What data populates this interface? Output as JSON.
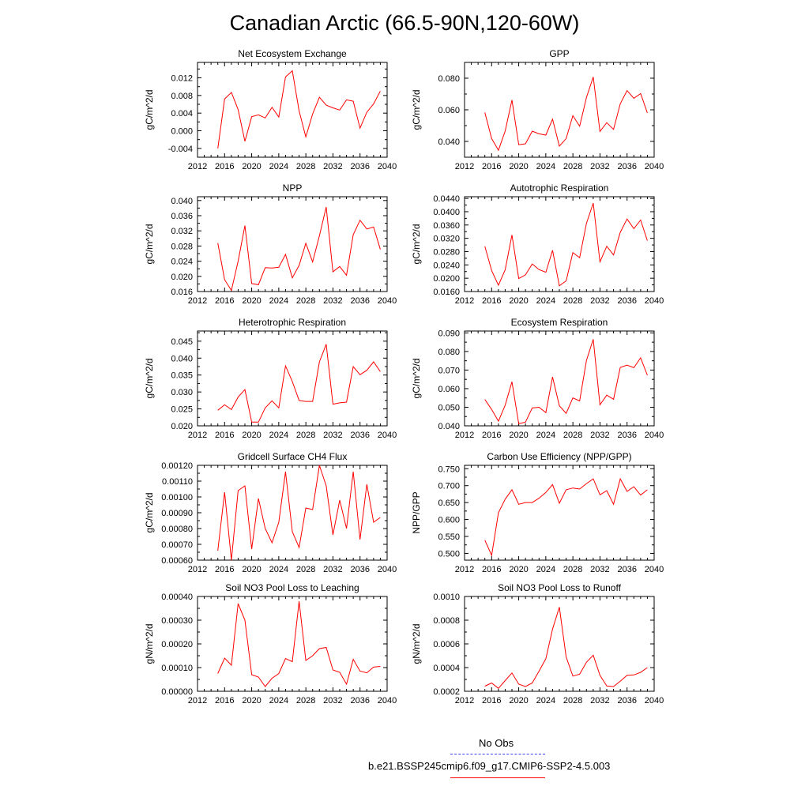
{
  "title": "Canadian Arctic (66.5-90N,120-60W)",
  "legend": {
    "obs_label": "No Obs",
    "model_label": "b.e21.BSSP245cmip6.f09_g17.CMIP6-SSP2-4.5.003",
    "obs_color": "#4040ff",
    "model_color": "#ff0000"
  },
  "chart_data": [
    {
      "type": "line",
      "title": "Net Ecosystem Exchange",
      "ylabel": "gC/m^2/d",
      "xlim": [
        2012,
        2040
      ],
      "ylim": [
        -0.006,
        0.0155
      ],
      "xticks": [
        2012,
        2016,
        2020,
        2024,
        2028,
        2032,
        2036,
        2040
      ],
      "xtick_labels": [
        "2012",
        "2016",
        "2020",
        "2024",
        "2028",
        "2032",
        "2036",
        "2040"
      ],
      "yticks": [
        -0.004,
        0.0,
        0.004,
        0.008,
        0.012
      ],
      "ytick_labels": [
        "-0.004",
        "0.000",
        "0.004",
        "0.008",
        "0.012"
      ],
      "x": [
        2015,
        2016,
        2017,
        2018,
        2019,
        2020,
        2021,
        2022,
        2023,
        2024,
        2025,
        2026,
        2027,
        2028,
        2029,
        2030,
        2031,
        2032,
        2033,
        2034,
        2035,
        2036,
        2037,
        2038,
        2039
      ],
      "y": [
        -0.004,
        0.0072,
        0.0087,
        0.0048,
        -0.0024,
        0.0032,
        0.0036,
        0.0029,
        0.0053,
        0.0031,
        0.0122,
        0.0136,
        0.0045,
        -0.0014,
        0.0038,
        0.0076,
        0.0058,
        0.0052,
        0.0047,
        0.007,
        0.0067,
        0.0006,
        0.0042,
        0.0061,
        0.009
      ]
    },
    {
      "type": "line",
      "title": "GPP",
      "ylabel": "gC/m^2/d",
      "xlim": [
        2012,
        2040
      ],
      "ylim": [
        0.03,
        0.09
      ],
      "xticks": [
        2012,
        2016,
        2020,
        2024,
        2028,
        2032,
        2036,
        2040
      ],
      "xtick_labels": [
        "2012",
        "2016",
        "2020",
        "2024",
        "2028",
        "2032",
        "2036",
        "2040"
      ],
      "yticks": [
        0.04,
        0.06,
        0.08
      ],
      "ytick_labels": [
        "0.040",
        "0.060",
        "0.080"
      ],
      "x": [
        2015,
        2016,
        2017,
        2018,
        2019,
        2020,
        2021,
        2022,
        2023,
        2024,
        2025,
        2026,
        2027,
        2028,
        2029,
        2030,
        2031,
        2032,
        2033,
        2034,
        2035,
        2036,
        2037,
        2038,
        2039
      ],
      "y": [
        0.0583,
        0.0418,
        0.0344,
        0.0465,
        0.0662,
        0.0379,
        0.0385,
        0.0465,
        0.0448,
        0.044,
        0.0541,
        0.037,
        0.0418,
        0.0563,
        0.0496,
        0.0678,
        0.0808,
        0.0463,
        0.0519,
        0.0476,
        0.0638,
        0.0722,
        0.0673,
        0.0703,
        0.058
      ]
    },
    {
      "type": "line",
      "title": "NPP",
      "ylabel": "gC/m^2/d",
      "xlim": [
        2012,
        2040
      ],
      "ylim": [
        0.016,
        0.041
      ],
      "xticks": [
        2012,
        2016,
        2020,
        2024,
        2028,
        2032,
        2036,
        2040
      ],
      "xtick_labels": [
        "2012",
        "2016",
        "2020",
        "2024",
        "2028",
        "2032",
        "2036",
        "2040"
      ],
      "yticks": [
        0.016,
        0.02,
        0.024,
        0.028,
        0.032,
        0.036,
        0.04
      ],
      "ytick_labels": [
        "0.016",
        "0.020",
        "0.024",
        "0.028",
        "0.032",
        "0.036",
        "0.040"
      ],
      "x": [
        2015,
        2016,
        2017,
        2018,
        2019,
        2020,
        2021,
        2022,
        2023,
        2024,
        2025,
        2026,
        2027,
        2028,
        2029,
        2030,
        2031,
        2032,
        2033,
        2034,
        2035,
        2036,
        2037,
        2038,
        2039
      ],
      "y": [
        0.0288,
        0.0191,
        0.0163,
        0.024,
        0.0334,
        0.0181,
        0.0178,
        0.0223,
        0.0222,
        0.0224,
        0.0258,
        0.0196,
        0.0229,
        0.0287,
        0.0238,
        0.0307,
        0.0383,
        0.0212,
        0.0226,
        0.0203,
        0.031,
        0.0348,
        0.0325,
        0.033,
        0.0271
      ]
    },
    {
      "type": "line",
      "title": "Autotrophic Respiration",
      "ylabel": "gC/m^2/d",
      "xlim": [
        2012,
        2040
      ],
      "ylim": [
        0.016,
        0.0445
      ],
      "xticks": [
        2012,
        2016,
        2020,
        2024,
        2028,
        2032,
        2036,
        2040
      ],
      "xtick_labels": [
        "2012",
        "2016",
        "2020",
        "2024",
        "2028",
        "2032",
        "2036",
        "2040"
      ],
      "yticks": [
        0.016,
        0.02,
        0.024,
        0.028,
        0.032,
        0.036,
        0.04,
        0.044
      ],
      "ytick_labels": [
        "0.0160",
        "0.0200",
        "0.0240",
        "0.0280",
        "0.0320",
        "0.0360",
        "0.0400",
        "0.0440"
      ],
      "x": [
        2015,
        2016,
        2017,
        2018,
        2019,
        2020,
        2021,
        2022,
        2023,
        2024,
        2025,
        2026,
        2027,
        2028,
        2029,
        2030,
        2031,
        2032,
        2033,
        2034,
        2035,
        2036,
        2037,
        2038,
        2039
      ],
      "y": [
        0.0296,
        0.0223,
        0.0179,
        0.0225,
        0.033,
        0.0199,
        0.021,
        0.0243,
        0.0226,
        0.0218,
        0.0284,
        0.0177,
        0.0192,
        0.0277,
        0.0262,
        0.0365,
        0.0426,
        0.0249,
        0.0296,
        0.027,
        0.0338,
        0.0378,
        0.0349,
        0.0375,
        0.0313
      ]
    },
    {
      "type": "line",
      "title": "Heterotrophic Respiration",
      "ylabel": "gC/m^2/d",
      "xlim": [
        2012,
        2040
      ],
      "ylim": [
        0.02,
        0.048
      ],
      "xticks": [
        2012,
        2016,
        2020,
        2024,
        2028,
        2032,
        2036,
        2040
      ],
      "xtick_labels": [
        "2012",
        "2016",
        "2020",
        "2024",
        "2028",
        "2032",
        "2036",
        "2040"
      ],
      "yticks": [
        0.02,
        0.025,
        0.03,
        0.035,
        0.04,
        0.045
      ],
      "ytick_labels": [
        "0.020",
        "0.025",
        "0.030",
        "0.035",
        "0.040",
        "0.045"
      ],
      "x": [
        2015,
        2016,
        2017,
        2018,
        2019,
        2020,
        2021,
        2022,
        2023,
        2024,
        2025,
        2026,
        2027,
        2028,
        2029,
        2030,
        2031,
        2032,
        2033,
        2034,
        2035,
        2036,
        2037,
        2038,
        2039
      ],
      "y": [
        0.0246,
        0.0262,
        0.0248,
        0.0285,
        0.0307,
        0.0211,
        0.0211,
        0.0253,
        0.0274,
        0.0253,
        0.0377,
        0.0331,
        0.0275,
        0.0272,
        0.0272,
        0.0389,
        0.0441,
        0.0264,
        0.0268,
        0.027,
        0.0375,
        0.0351,
        0.0364,
        0.0389,
        0.036
      ]
    },
    {
      "type": "line",
      "title": "Ecosystem Respiration",
      "ylabel": "gC/m^2/d",
      "xlim": [
        2012,
        2040
      ],
      "ylim": [
        0.04,
        0.091
      ],
      "xticks": [
        2012,
        2016,
        2020,
        2024,
        2028,
        2032,
        2036,
        2040
      ],
      "xtick_labels": [
        "2012",
        "2016",
        "2020",
        "2024",
        "2028",
        "2032",
        "2036",
        "2040"
      ],
      "yticks": [
        0.04,
        0.05,
        0.06,
        0.07,
        0.08,
        0.09
      ],
      "ytick_labels": [
        "0.040",
        "0.050",
        "0.060",
        "0.070",
        "0.080",
        "0.090"
      ],
      "x": [
        2015,
        2016,
        2017,
        2018,
        2019,
        2020,
        2021,
        2022,
        2023,
        2024,
        2025,
        2026,
        2027,
        2028,
        2029,
        2030,
        2031,
        2032,
        2033,
        2034,
        2035,
        2036,
        2037,
        2038,
        2039
      ],
      "y": [
        0.0542,
        0.0488,
        0.0425,
        0.0511,
        0.0637,
        0.0411,
        0.042,
        0.0496,
        0.05,
        0.0471,
        0.0663,
        0.0508,
        0.0467,
        0.055,
        0.0534,
        0.0752,
        0.0866,
        0.0513,
        0.0565,
        0.0543,
        0.0714,
        0.0727,
        0.0713,
        0.0766,
        0.0672
      ]
    },
    {
      "type": "line",
      "title": "Gridcell Surface CH4 Flux",
      "ylabel": "gC/m^2/d",
      "xlim": [
        2012,
        2040
      ],
      "ylim": [
        0.0006,
        0.0012
      ],
      "xticks": [
        2012,
        2016,
        2020,
        2024,
        2028,
        2032,
        2036,
        2040
      ],
      "xtick_labels": [
        "2012",
        "2016",
        "2020",
        "2024",
        "2028",
        "2032",
        "2036",
        "2040"
      ],
      "yticks": [
        0.0006,
        0.0007,
        0.0008,
        0.0009,
        0.001,
        0.0011,
        0.0012
      ],
      "ytick_labels": [
        "0.00060",
        "0.00070",
        "0.00080",
        "0.00090",
        "0.00100",
        "0.00110",
        "0.00120"
      ],
      "x": [
        2015,
        2016,
        2017,
        2018,
        2019,
        2020,
        2021,
        2022,
        2023,
        2024,
        2025,
        2026,
        2027,
        2028,
        2029,
        2030,
        2031,
        2032,
        2033,
        2034,
        2035,
        2036,
        2037,
        2038,
        2039
      ],
      "y": [
        0.00066,
        0.00103,
        0.0006,
        0.00104,
        0.00107,
        0.00067,
        0.00099,
        0.0008,
        0.00071,
        0.00084,
        0.00116,
        0.00078,
        0.00068,
        0.00093,
        0.00092,
        0.0012,
        0.00107,
        0.00076,
        0.00098,
        0.0008,
        0.00116,
        0.00073,
        0.00108,
        0.00084,
        0.00087
      ]
    },
    {
      "type": "line",
      "title": "Carbon Use Efficiency (NPP/GPP)",
      "ylabel": "NPP/GPP",
      "xlim": [
        2012,
        2040
      ],
      "ylim": [
        0.48,
        0.76
      ],
      "xticks": [
        2012,
        2016,
        2020,
        2024,
        2028,
        2032,
        2036,
        2040
      ],
      "xtick_labels": [
        "2012",
        "2016",
        "2020",
        "2024",
        "2028",
        "2032",
        "2036",
        "2040"
      ],
      "yticks": [
        0.5,
        0.55,
        0.6,
        0.65,
        0.7,
        0.75
      ],
      "ytick_labels": [
        "0.500",
        "0.550",
        "0.600",
        "0.650",
        "0.700",
        "0.750"
      ],
      "x": [
        2015,
        2016,
        2017,
        2018,
        2019,
        2020,
        2021,
        2022,
        2023,
        2024,
        2025,
        2026,
        2027,
        2028,
        2029,
        2030,
        2031,
        2032,
        2033,
        2034,
        2035,
        2036,
        2037,
        2038,
        2039
      ],
      "y": [
        0.539,
        0.494,
        0.62,
        0.66,
        0.688,
        0.645,
        0.65,
        0.65,
        0.663,
        0.68,
        0.703,
        0.648,
        0.688,
        0.693,
        0.69,
        0.706,
        0.72,
        0.673,
        0.685,
        0.645,
        0.72,
        0.683,
        0.697,
        0.672,
        0.688
      ]
    },
    {
      "type": "line",
      "title": "Soil NO3 Pool Loss to Leaching",
      "ylabel": "gN/m^2/d",
      "xlim": [
        2012,
        2040
      ],
      "ylim": [
        0.0,
        0.0004
      ],
      "xticks": [
        2012,
        2016,
        2020,
        2024,
        2028,
        2032,
        2036,
        2040
      ],
      "xtick_labels": [
        "2012",
        "2016",
        "2020",
        "2024",
        "2028",
        "2032",
        "2036",
        "2040"
      ],
      "yticks": [
        0.0,
        0.0001,
        0.0002,
        0.0003,
        0.0004
      ],
      "ytick_labels": [
        "0.00000",
        "0.00010",
        "0.00020",
        "0.00030",
        "0.00040"
      ],
      "x": [
        2015,
        2016,
        2017,
        2018,
        2019,
        2020,
        2021,
        2022,
        2023,
        2024,
        2025,
        2026,
        2027,
        2028,
        2029,
        2030,
        2031,
        2032,
        2033,
        2034,
        2035,
        2036,
        2037,
        2038,
        2039
      ],
      "y": [
        7.5e-05,
        0.00014,
        0.00011,
        0.00037,
        0.0003,
        7e-05,
        6e-05,
        2e-05,
        5.5e-05,
        7.5e-05,
        0.000138,
        0.000125,
        0.00038,
        0.00013,
        0.00015,
        0.00018,
        0.000185,
        9e-05,
        8e-05,
        3e-05,
        0.000135,
        8.5e-05,
        7.8e-05,
        0.000102,
        0.000105
      ]
    },
    {
      "type": "line",
      "title": "Soil NO3 Pool Loss to Runoff",
      "ylabel": "gN/m^2/d",
      "xlim": [
        2012,
        2040
      ],
      "ylim": [
        0.0002,
        0.001
      ],
      "xticks": [
        2012,
        2016,
        2020,
        2024,
        2028,
        2032,
        2036,
        2040
      ],
      "xtick_labels": [
        "2012",
        "2016",
        "2020",
        "2024",
        "2028",
        "2032",
        "2036",
        "2040"
      ],
      "yticks": [
        0.0002,
        0.0004,
        0.0006,
        0.0008,
        0.001
      ],
      "ytick_labels": [
        "0.0002",
        "0.0004",
        "0.0006",
        "0.0008",
        "0.0010"
      ],
      "x": [
        2015,
        2016,
        2017,
        2018,
        2019,
        2020,
        2021,
        2022,
        2023,
        2024,
        2025,
        2026,
        2027,
        2028,
        2029,
        2030,
        2031,
        2032,
        2033,
        2034,
        2035,
        2036,
        2037,
        2038,
        2039
      ],
      "y": [
        0.000243,
        0.00027,
        0.000225,
        0.00029,
        0.000355,
        0.00026,
        0.00024,
        0.00027,
        0.00037,
        0.000475,
        0.000725,
        0.00091,
        0.00049,
        0.000328,
        0.000345,
        0.000445,
        0.000505,
        0.000335,
        0.000245,
        0.00024,
        0.000285,
        0.000335,
        0.000338,
        0.00036,
        0.0004
      ]
    }
  ]
}
